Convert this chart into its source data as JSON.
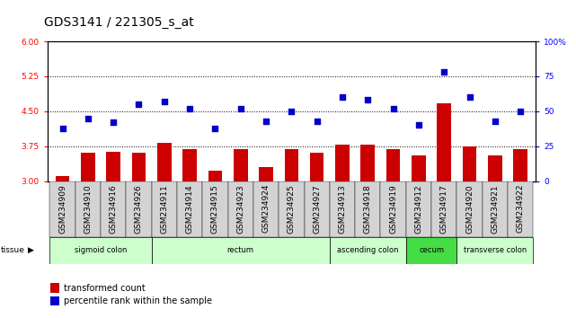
{
  "title": "GDS3141 / 221305_s_at",
  "samples": [
    "GSM234909",
    "GSM234910",
    "GSM234916",
    "GSM234926",
    "GSM234911",
    "GSM234914",
    "GSM234915",
    "GSM234923",
    "GSM234924",
    "GSM234925",
    "GSM234927",
    "GSM234913",
    "GSM234918",
    "GSM234919",
    "GSM234912",
    "GSM234917",
    "GSM234920",
    "GSM234921",
    "GSM234922"
  ],
  "bar_values": [
    3.12,
    3.62,
    3.63,
    3.62,
    3.82,
    3.68,
    3.22,
    3.68,
    3.3,
    3.68,
    3.62,
    3.78,
    3.78,
    3.68,
    3.55,
    4.68,
    3.75,
    3.55,
    3.68
  ],
  "dot_values": [
    38,
    45,
    42,
    55,
    57,
    52,
    38,
    52,
    43,
    50,
    43,
    60,
    58,
    52,
    40,
    78,
    60,
    43,
    50
  ],
  "bar_color": "#cc0000",
  "dot_color": "#0000cc",
  "ylim_left": [
    3.0,
    6.0
  ],
  "ylim_right": [
    0,
    100
  ],
  "yticks_left": [
    3.0,
    3.75,
    4.5,
    5.25,
    6.0
  ],
  "yticks_right": [
    0,
    25,
    50,
    75,
    100
  ],
  "hlines": [
    3.75,
    4.5,
    5.25
  ],
  "tissue_groups": [
    {
      "label": "sigmoid colon",
      "start": 0,
      "end": 4,
      "color": "#ccffcc"
    },
    {
      "label": "rectum",
      "start": 4,
      "end": 11,
      "color": "#ccffcc"
    },
    {
      "label": "ascending colon",
      "start": 11,
      "end": 14,
      "color": "#ccffcc"
    },
    {
      "label": "cecum",
      "start": 14,
      "end": 16,
      "color": "#44dd44"
    },
    {
      "label": "transverse colon",
      "start": 16,
      "end": 19,
      "color": "#ccffcc"
    }
  ],
  "tissue_label": "tissue",
  "legend_bar_label": "transformed count",
  "legend_dot_label": "percentile rank within the sample",
  "bg_color": "#ffffff",
  "title_fontsize": 10,
  "tick_fontsize": 6.5,
  "label_bg_color": "#cccccc"
}
